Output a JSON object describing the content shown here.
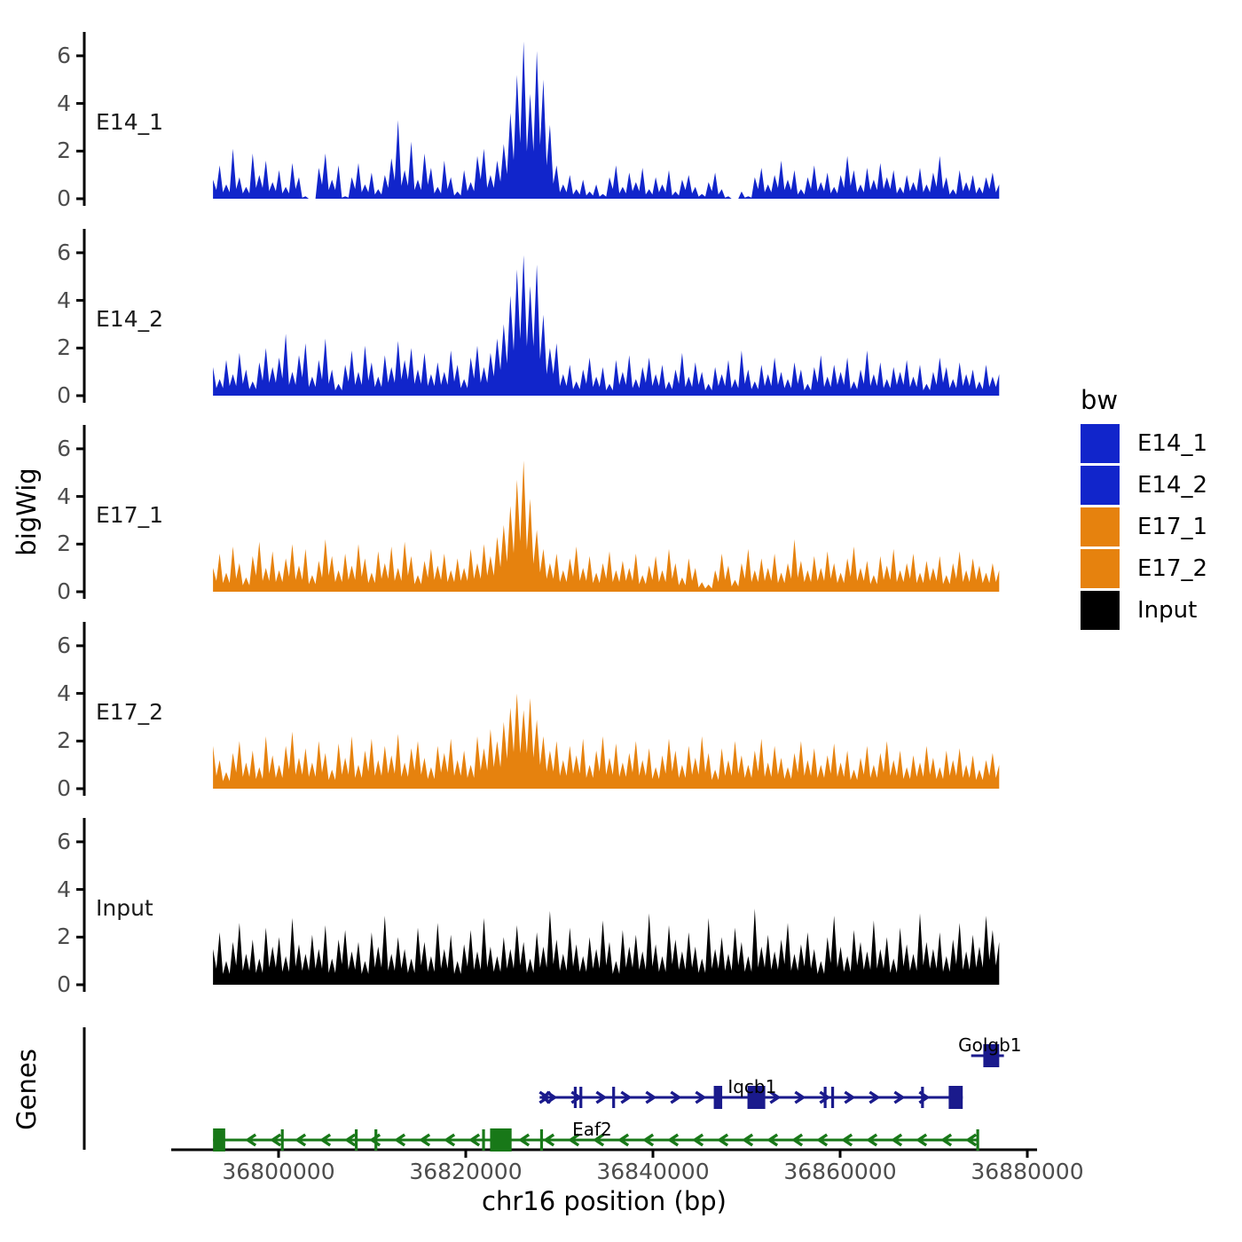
{
  "legend": {
    "title": "bw",
    "entries": [
      {
        "label": "E14_1",
        "color": "#1125CB"
      },
      {
        "label": "E14_2",
        "color": "#1125CB"
      },
      {
        "label": "E17_1",
        "color": "#E6820E"
      },
      {
        "label": "E17_2",
        "color": "#E6820E"
      },
      {
        "label": "Input",
        "color": "#000000"
      }
    ]
  },
  "genes_panel": {
    "label": "Genes"
  },
  "chart_data": {
    "type": "area",
    "title": "",
    "xlabel": "chr16 position (bp)",
    "ylabel": "bigWig",
    "grid": false,
    "legend_position": "right",
    "x_start": 36793000,
    "x_end": 36877000,
    "ylim": [
      0,
      7
    ],
    "yticks": [
      0,
      2,
      4,
      6
    ],
    "xticks": [
      {
        "label": "36800000",
        "bp": 36800000
      },
      {
        "label": "36820000",
        "bp": 36820000
      },
      {
        "label": "36840000",
        "bp": 36840000
      },
      {
        "label": "36860000",
        "bp": 36860000
      },
      {
        "label": "36880000",
        "bp": 36880000
      }
    ],
    "series": [
      {
        "name": "E14_1",
        "color": "#1125CB",
        "values": [
          0.8,
          1.4,
          0.6,
          2.1,
          0.9,
          0.5,
          1.9,
          1.0,
          1.6,
          0.7,
          1.2,
          0.5,
          1.5,
          0.9,
          0.1,
          0,
          1.3,
          1.9,
          0.8,
          1.4,
          0.1,
          0.9,
          1.5,
          0.6,
          1.1,
          0.4,
          1.0,
          1.7,
          3.3,
          1.2,
          2.4,
          0.8,
          1.9,
          1.3,
          0.5,
          1.6,
          0.9,
          0.3,
          1.2,
          0.7,
          1.8,
          2.1,
          1.0,
          1.6,
          2.3,
          3.6,
          5.2,
          6.6,
          4.4,
          6.2,
          5.0,
          3.1,
          1.4,
          0.6,
          1.0,
          0.4,
          0.8,
          0.3,
          0.6,
          0.2,
          0.9,
          1.4,
          0.5,
          1.1,
          0.7,
          1.3,
          0.4,
          0.9,
          0.6,
          1.2,
          0.3,
          0.8,
          1.0,
          0.5,
          0.2,
          0.7,
          1.1,
          0.4,
          0.1,
          0,
          0.3,
          0.1,
          0.9,
          1.3,
          0.6,
          1.0,
          1.6,
          0.8,
          1.2,
          0.4,
          0.9,
          1.4,
          0.7,
          1.1,
          0.5,
          1.0,
          1.8,
          1.2,
          0.6,
          1.3,
          0.8,
          1.5,
          0.9,
          1.2,
          0.5,
          1.0,
          0.7,
          1.3,
          0.6,
          1.1,
          1.8,
          0.9,
          0.4,
          1.2,
          0.7,
          1.0,
          0.5,
          0.9,
          1.1,
          0.6
        ]
      },
      {
        "name": "E14_2",
        "color": "#1125CB",
        "values": [
          1.2,
          0.7,
          1.5,
          0.9,
          1.8,
          1.1,
          0.6,
          1.4,
          2.0,
          1.2,
          1.6,
          2.6,
          1.0,
          1.7,
          2.2,
          0.8,
          1.5,
          2.4,
          1.1,
          0.5,
          1.3,
          1.9,
          1.0,
          2.1,
          1.4,
          0.8,
          1.7,
          1.2,
          2.3,
          1.5,
          2.0,
          1.1,
          1.8,
          0.9,
          1.4,
          1.0,
          1.9,
          1.3,
          0.7,
          1.6,
          2.1,
          1.2,
          1.8,
          2.4,
          3.0,
          4.2,
          5.3,
          5.9,
          4.6,
          5.5,
          3.4,
          2.0,
          2.2,
          0.9,
          1.3,
          0.6,
          1.1,
          1.6,
          0.8,
          1.2,
          0.5,
          1.5,
          1.0,
          1.7,
          0.7,
          1.2,
          1.6,
          0.9,
          1.3,
          0.6,
          1.1,
          1.8,
          0.8,
          1.4,
          1.0,
          0.5,
          1.2,
          0.9,
          1.5,
          0.7,
          1.9,
          1.1,
          0.6,
          1.3,
          0.9,
          1.6,
          1.0,
          0.7,
          1.4,
          1.1,
          0.5,
          1.2,
          1.7,
          0.8,
          1.3,
          1.0,
          1.6,
          0.6,
          1.1,
          1.9,
          0.9,
          1.4,
          0.7,
          1.2,
          1.0,
          1.5,
          0.8,
          1.3,
          0.5,
          1.0,
          1.6,
          1.2,
          0.7,
          1.4,
          0.9,
          1.1,
          0.6,
          1.3,
          0.8,
          0.9
        ]
      },
      {
        "name": "E17_1",
        "color": "#E6820E",
        "values": [
          1.0,
          1.6,
          0.8,
          1.9,
          1.2,
          0.6,
          1.5,
          2.1,
          1.0,
          1.7,
          0.9,
          1.4,
          2.0,
          1.1,
          1.8,
          0.7,
          1.3,
          2.2,
          1.5,
          0.9,
          1.6,
          1.1,
          2.0,
          1.4,
          0.8,
          1.7,
          1.2,
          1.9,
          1.0,
          2.1,
          1.5,
          0.7,
          1.3,
          1.8,
          1.1,
          1.6,
          0.9,
          1.4,
          1.0,
          1.8,
          1.2,
          2.0,
          1.5,
          2.3,
          2.8,
          3.6,
          4.7,
          5.5,
          3.9,
          2.6,
          1.8,
          1.2,
          1.6,
          0.9,
          1.4,
          1.9,
          1.0,
          1.5,
          0.8,
          1.2,
          1.7,
          0.9,
          1.3,
          1.0,
          1.6,
          0.7,
          1.1,
          1.5,
          0.9,
          1.8,
          1.2,
          0.6,
          1.4,
          1.0,
          0.4,
          0.3,
          0.9,
          1.6,
          1.1,
          0.5,
          1.2,
          1.8,
          0.9,
          1.4,
          1.0,
          1.6,
          0.8,
          1.2,
          2.2,
          1.3,
          0.9,
          1.5,
          1.0,
          1.7,
          1.2,
          0.8,
          1.4,
          1.9,
          1.0,
          1.3,
          0.7,
          1.5,
          1.1,
          1.8,
          0.9,
          1.2,
          1.6,
          0.8,
          1.3,
          1.0,
          1.5,
          0.7,
          1.2,
          1.7,
          0.9,
          1.4,
          1.1,
          0.8,
          1.2,
          0.9
        ]
      },
      {
        "name": "E17_2",
        "color": "#E6820E",
        "values": [
          1.8,
          1.2,
          0.7,
          1.5,
          2.0,
          1.1,
          1.6,
          0.9,
          2.2,
          1.4,
          1.0,
          1.8,
          2.4,
          1.3,
          1.7,
          1.1,
          2.0,
          1.5,
          0.8,
          1.9,
          1.3,
          2.2,
          1.0,
          1.6,
          2.1,
          1.2,
          1.8,
          1.4,
          2.3,
          1.1,
          1.7,
          2.0,
          1.3,
          0.9,
          1.8,
          1.5,
          2.1,
          1.2,
          1.6,
          1.0,
          2.2,
          1.7,
          2.5,
          2.0,
          2.8,
          3.4,
          4.0,
          3.3,
          3.8,
          2.9,
          2.2,
          1.6,
          2.0,
          1.2,
          1.8,
          1.4,
          2.1,
          1.0,
          1.6,
          2.2,
          1.3,
          1.9,
          1.1,
          1.5,
          2.0,
          1.2,
          1.7,
          0.9,
          1.4,
          2.1,
          1.6,
          1.0,
          1.8,
          1.3,
          2.2,
          1.5,
          0.8,
          1.7,
          1.2,
          2.0,
          1.4,
          1.0,
          1.6,
          2.1,
          1.1,
          1.8,
          1.3,
          0.9,
          1.5,
          2.0,
          1.2,
          1.7,
          1.0,
          1.4,
          1.9,
          1.1,
          1.6,
          0.8,
          1.3,
          1.8,
          1.0,
          1.5,
          2.0,
          1.2,
          1.6,
          0.9,
          1.4,
          1.1,
          1.8,
          1.3,
          0.9,
          1.6,
          1.2,
          1.7,
          1.0,
          1.4,
          0.8,
          1.2,
          1.5,
          1.0
        ]
      },
      {
        "name": "Input",
        "color": "#000000",
        "values": [
          1.5,
          2.2,
          1.0,
          1.8,
          2.6,
          1.3,
          1.9,
          1.1,
          2.4,
          1.6,
          2.0,
          1.2,
          2.8,
          1.7,
          1.3,
          2.1,
          1.5,
          2.5,
          1.1,
          1.9,
          2.3,
          1.4,
          1.8,
          1.0,
          2.2,
          1.6,
          2.9,
          1.3,
          2.0,
          1.5,
          1.1,
          2.4,
          1.8,
          1.2,
          2.6,
          1.5,
          2.1,
          1.0,
          1.7,
          2.3,
          1.4,
          2.8,
          1.6,
          1.2,
          2.0,
          1.5,
          2.5,
          1.8,
          1.1,
          2.2,
          1.6,
          3.1,
          1.9,
          1.3,
          2.4,
          1.7,
          1.2,
          2.0,
          1.5,
          2.7,
          1.8,
          1.0,
          2.3,
          1.6,
          2.1,
          1.4,
          3.0,
          1.7,
          1.2,
          2.5,
          1.9,
          1.4,
          2.2,
          1.6,
          1.1,
          2.8,
          1.5,
          2.0,
          1.3,
          2.4,
          1.8,
          1.2,
          3.2,
          1.6,
          2.1,
          1.4,
          1.9,
          2.6,
          1.3,
          1.7,
          2.2,
          1.5,
          1.0,
          2.0,
          2.9,
          1.6,
          1.2,
          2.3,
          1.8,
          1.4,
          2.7,
          1.5,
          2.0,
          1.1,
          2.4,
          1.7,
          1.3,
          3.0,
          1.8,
          1.5,
          2.2,
          1.2,
          1.9,
          2.6,
          1.4,
          2.1,
          1.6,
          2.9,
          2.3,
          1.8
        ]
      }
    ],
    "genes": [
      {
        "name": "Golgb1",
        "strand": "+",
        "color": "#1A1A8C",
        "row": 0,
        "start": 36874000,
        "end": 36877500,
        "exons": [
          [
            36875300,
            36877000
          ]
        ],
        "ticks": [],
        "label_bp": 36876000,
        "start_marker": false
      },
      {
        "name": "Iqcb1",
        "strand": "+",
        "color": "#1A1A8C",
        "row": 1,
        "start": 36827900,
        "end": 36873100,
        "exons": [
          [
            36846500,
            36847400
          ],
          [
            36850100,
            36852000
          ],
          [
            36871600,
            36873100
          ]
        ],
        "ticks": [
          36831700,
          36832300,
          36835800,
          36858400,
          36859200,
          36868800
        ],
        "label_bp": 36850600,
        "start_marker": true
      },
      {
        "name": "Eaf2",
        "strand": "-",
        "color": "#187818",
        "row": 2,
        "start": 36793000,
        "end": 36874800,
        "exons": [
          [
            36793000,
            36794300
          ],
          [
            36822600,
            36824900
          ]
        ],
        "ticks": [
          36800400,
          36808300,
          36810400,
          36821900,
          36828100,
          36874700
        ],
        "label_bp": 36833500,
        "start_marker": false
      }
    ]
  }
}
